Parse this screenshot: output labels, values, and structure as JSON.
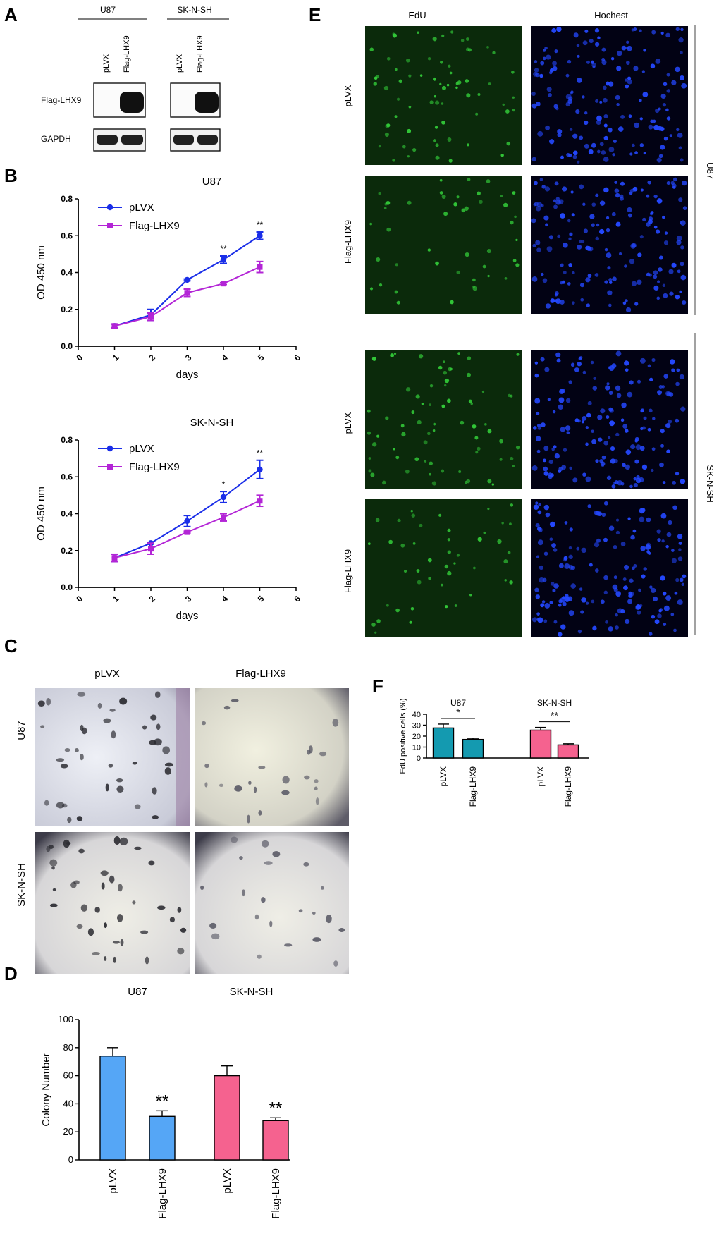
{
  "panels": {
    "A": "A",
    "B": "B",
    "C": "C",
    "D": "D",
    "E": "E",
    "F": "F"
  },
  "colors": {
    "blue_line": "#1a2ee8",
    "purple_line": "#b325d6",
    "bar_blue": "#55a6f6",
    "bar_pink": "#f5628f",
    "bar_teal": "#149ab0",
    "edu_green": "#0b2a0b",
    "hoechst_blue": "#020214"
  },
  "panel_a": {
    "groups": [
      "U87",
      "SK-N-SH"
    ],
    "lanes": [
      "pLVX",
      "Flag-LHX9",
      "pLVX",
      "Flag-LHX9"
    ],
    "bands": [
      "Flag-LHX9",
      "GAPDH"
    ]
  },
  "panel_c": {
    "cols": [
      "pLVX",
      "Flag-LHX9"
    ],
    "rows": [
      "U87",
      "SK-N-SH"
    ]
  },
  "panel_e": {
    "cols": [
      "EdU",
      "Hochest"
    ],
    "rows": [
      "pLVX",
      "Flag-LHX9",
      "pLVX",
      "Flag-LHX9"
    ],
    "groups": [
      "U87",
      "SK-N-SH"
    ]
  },
  "chart_data": [
    {
      "id": "B-U87",
      "type": "line",
      "title": "U87",
      "xlabel": "days",
      "ylabel": "OD 450 nm",
      "xlim": [
        0,
        6
      ],
      "ylim": [
        0,
        0.8
      ],
      "xticks": [
        "0",
        "1",
        "2",
        "3",
        "4",
        "5",
        "6"
      ],
      "yticks": [
        "0.0",
        "0.2",
        "0.4",
        "0.6",
        "0.8"
      ],
      "x": [
        1,
        2,
        3,
        4,
        5
      ],
      "series": [
        {
          "name": "pLVX",
          "values": [
            0.11,
            0.17,
            0.36,
            0.47,
            0.6
          ],
          "err": [
            0.01,
            0.03,
            0.005,
            0.02,
            0.02
          ]
        },
        {
          "name": "Flag-LHX9",
          "values": [
            0.11,
            0.16,
            0.29,
            0.34,
            0.43
          ],
          "err": [
            0.01,
            0.02,
            0.02,
            0.005,
            0.03
          ]
        }
      ],
      "annotations": [
        {
          "x": 4,
          "text": "**"
        },
        {
          "x": 5,
          "text": "**"
        }
      ]
    },
    {
      "id": "B-SKNSH",
      "type": "line",
      "title": "SK-N-SH",
      "xlabel": "days",
      "ylabel": "OD 450 nm",
      "xlim": [
        0,
        6
      ],
      "ylim": [
        0,
        0.8
      ],
      "xticks": [
        "0",
        "1",
        "2",
        "3",
        "4",
        "5",
        "6"
      ],
      "yticks": [
        "0.0",
        "0.2",
        "0.4",
        "0.6",
        "0.8"
      ],
      "x": [
        1,
        2,
        3,
        4,
        5
      ],
      "series": [
        {
          "name": "pLVX",
          "values": [
            0.16,
            0.24,
            0.36,
            0.49,
            0.64
          ],
          "err": [
            0.02,
            0.005,
            0.03,
            0.03,
            0.05
          ]
        },
        {
          "name": "Flag-LHX9",
          "values": [
            0.16,
            0.21,
            0.3,
            0.38,
            0.47
          ],
          "err": [
            0.02,
            0.03,
            0.005,
            0.02,
            0.03
          ]
        }
      ],
      "annotations": [
        {
          "x": 4,
          "text": "*"
        },
        {
          "x": 5,
          "text": "**"
        }
      ]
    },
    {
      "id": "D",
      "type": "bar",
      "ylabel": "Colony Number",
      "ylim": [
        0,
        100
      ],
      "yticks": [
        "0",
        "20",
        "40",
        "60",
        "80",
        "100"
      ],
      "groups": [
        "U87",
        "SK-N-SH"
      ],
      "categories": [
        "pLVX",
        "Flag-LHX9",
        "pLVX",
        "Flag-LHX9"
      ],
      "values": [
        74,
        31,
        60,
        28
      ],
      "err": [
        6,
        4,
        7,
        2
      ],
      "annotations": [
        "",
        "**",
        "",
        "**"
      ]
    },
    {
      "id": "F",
      "type": "bar",
      "ylabel": "EdU positive cells (%)",
      "ylim": [
        0,
        40
      ],
      "yticks": [
        "0",
        "10",
        "20",
        "30",
        "40"
      ],
      "groups": [
        "U87",
        "SK-N-SH"
      ],
      "categories": [
        "pLVX",
        "Flag-LHX9",
        "pLVX",
        "Flag-LHX9"
      ],
      "values": [
        27.5,
        17,
        25.5,
        12
      ],
      "err": [
        3.5,
        1,
        2.5,
        1
      ],
      "significance": [
        "*",
        "**"
      ]
    }
  ]
}
